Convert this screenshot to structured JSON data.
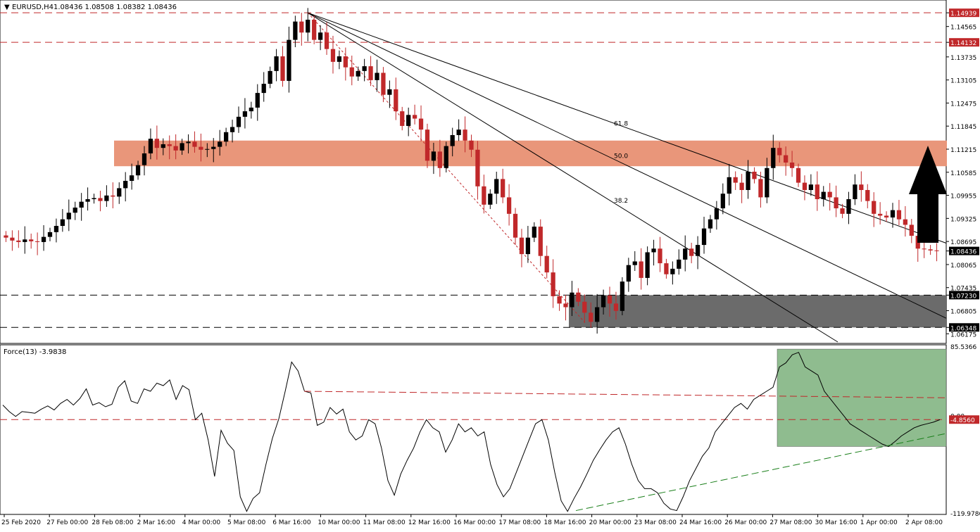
{
  "header": {
    "symbol": "EURUSD,H4",
    "ohlc": "1.08436 1.08508 1.08382 1.08436"
  },
  "colors": {
    "bull": "#000000",
    "bear": "#c0282a",
    "resistance_zone": "#e9967a",
    "support_zone": "#6b6b6b",
    "force_zone": "#8fbc8f",
    "level_line": "#c0282a",
    "arrow": "#000000"
  },
  "chart_data": [
    {
      "type": "candlestick",
      "title": "EURUSD,H4",
      "ylim": [
        1.0595,
        1.1525
      ],
      "y_ticks": [
        "1.14939",
        "1.14565",
        "1.14132",
        "1.13735",
        "1.13105",
        "1.12475",
        "1.11845",
        "1.11215",
        "1.10585",
        "1.09955",
        "1.09325",
        "1.08695",
        "1.08436",
        "1.08065",
        "1.07435",
        "1.07230",
        "1.06805",
        "1.06348",
        "1.06175"
      ],
      "x_ticks": [
        "25 Feb 2020",
        "27 Feb 00:00",
        "28 Feb 08:00",
        "2 Mar 16:00",
        "4 Mar 00:00",
        "5 Mar 08:00",
        "6 Mar 16:00",
        "10 Mar 00:00",
        "11 Mar 08:00",
        "12 Mar 16:00",
        "16 Mar 00:00",
        "17 Mar 08:00",
        "18 Mar 16:00",
        "20 Mar 00:00",
        "23 Mar 08:00",
        "24 Mar 16:00",
        "26 Mar 00:00",
        "27 Mar 08:00",
        "30 Mar 16:00",
        "1 Apr 00:00",
        "2 Apr 08:00"
      ],
      "horizontal_levels": [
        {
          "value": 1.14939,
          "label": "1.14939"
        },
        {
          "value": 1.14132,
          "label": "1.14132"
        },
        {
          "value": 1.0723,
          "label": "1.07230"
        },
        {
          "value": 1.06348,
          "label": "1.06348"
        }
      ],
      "current_price": {
        "value": 1.08436,
        "label": "1.08436"
      },
      "resistance_zone": {
        "from": 1.1075,
        "to": 1.1145
      },
      "support_zone": {
        "from": 1.06348,
        "to": 1.0723
      },
      "fib_fan": {
        "levels": [
          "61.8",
          "50.0",
          "38.2"
        ]
      },
      "close_series": [
        1.088,
        1.0872,
        1.0868,
        1.0875,
        1.087,
        1.0868,
        1.0882,
        1.0895,
        1.0912,
        1.093,
        1.0948,
        1.0962,
        1.0978,
        1.0985,
        1.0988,
        1.098,
        1.0995,
        1.0992,
        1.1015,
        1.1035,
        1.105,
        1.1078,
        1.111,
        1.115,
        1.1125,
        1.1135,
        1.113,
        1.1118,
        1.1138,
        1.1142,
        1.1128,
        1.112,
        1.1122,
        1.1128,
        1.1142,
        1.1168,
        1.1182,
        1.121,
        1.1225,
        1.1235,
        1.1275,
        1.13,
        1.1335,
        1.1375,
        1.1308,
        1.142,
        1.147,
        1.144,
        1.1475,
        1.142,
        1.144,
        1.1395,
        1.136,
        1.1375,
        1.1345,
        1.132,
        1.1335,
        1.1348,
        1.131,
        1.133,
        1.127,
        1.1285,
        1.1225,
        1.1185,
        1.1215,
        1.1205,
        1.1175,
        1.109,
        1.1115,
        1.107,
        1.113,
        1.116,
        1.1175,
        1.1145,
        1.112,
        1.102,
        1.097,
        1.1,
        1.104,
        1.099,
        1.0945,
        1.088,
        1.0835,
        1.088,
        1.091,
        1.083,
        1.0785,
        1.072,
        1.07,
        1.069,
        1.073,
        1.0705,
        1.0675,
        1.065,
        1.069,
        1.0722,
        1.07,
        1.068,
        1.076,
        1.0805,
        1.0815,
        1.077,
        1.084,
        1.085,
        1.081,
        1.078,
        1.0795,
        1.082,
        1.085,
        1.083,
        1.086,
        1.0905,
        1.093,
        1.096,
        1.1,
        1.1045,
        1.103,
        1.101,
        1.106,
        1.104,
        1.099,
        1.107,
        1.1125,
        1.1105,
        1.1085,
        1.107,
        1.103,
        1.101,
        1.1025,
        1.0985,
        1.1005,
        1.099,
        1.096,
        1.0945,
        1.0985,
        1.1025,
        1.101,
        1.098,
        1.0945,
        1.094,
        1.0935,
        1.0955,
        1.093,
        1.0915,
        1.0885,
        1.085,
        1.0848,
        1.0845,
        1.08436
      ]
    },
    {
      "type": "line",
      "title": "Force(13) -3.9838",
      "ylim": [
        -119.9786,
        85.5366
      ],
      "y_ticks": [
        "85.5366",
        "0.00",
        "-4.8560",
        "-119.9786"
      ],
      "level_line": {
        "value": -4.856,
        "label": "-4.8560"
      },
      "zone": {
        "from": -38,
        "to": 82
      },
      "series": [
        {
          "values": [
            13,
            5,
            -1,
            5,
            4,
            3,
            8,
            12,
            7,
            15,
            20,
            13,
            21,
            33,
            13,
            16,
            11,
            14,
            35,
            43,
            18,
            15,
            33,
            30,
            40,
            37,
            44,
            20,
            37,
            32,
            -5,
            3,
            -30,
            -75,
            -18,
            -34,
            -43,
            -100,
            -118,
            -102,
            -95,
            -60,
            -28,
            -4,
            30,
            66,
            55,
            30,
            28,
            -12,
            -8,
            10,
            2,
            8,
            -20,
            -30,
            -25,
            -5,
            -10,
            -40,
            -80,
            -98,
            -72,
            -55,
            -40,
            -20,
            -5,
            -15,
            -20,
            -45,
            -30,
            -10,
            -20,
            -15,
            -25,
            -20,
            -60,
            -85,
            -100,
            -90,
            -70,
            -50,
            -30,
            -10,
            -5,
            -30,
            -70,
            -105,
            -118,
            -102,
            -88,
            -72,
            -55,
            -42,
            -30,
            -20,
            -15,
            -35,
            -60,
            -80,
            -90,
            -90,
            -95,
            -108,
            -115,
            -117,
            -100,
            -80,
            -65,
            -50,
            -40,
            -20,
            -10,
            0,
            10,
            15,
            8,
            20,
            25,
            30,
            35,
            60,
            65,
            75,
            78,
            60,
            55,
            50,
            30,
            20,
            10,
            0,
            -10,
            -15,
            -20,
            -25,
            -30,
            -35,
            -38,
            -32,
            -25,
            -20,
            -15,
            -12,
            -10,
            -8,
            -5
          ]
        }
      ]
    }
  ]
}
